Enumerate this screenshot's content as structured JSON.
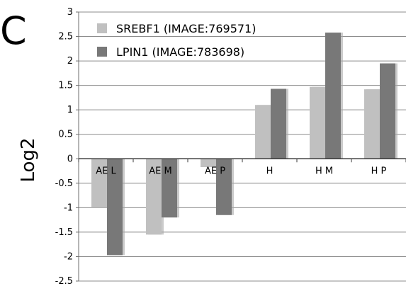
{
  "panel_label": "C",
  "chart_data": {
    "type": "bar",
    "title": "",
    "xlabel": "",
    "ylabel": "Log2",
    "ylim": [
      -2.5,
      3
    ],
    "yticks": [
      -2.5,
      -2,
      -1.5,
      -1,
      -0.5,
      0,
      0.5,
      1,
      1.5,
      2,
      2.5,
      3
    ],
    "ytick_labels": [
      "-2.5",
      "-2",
      "-1.5",
      "-1",
      "-0.5",
      "0",
      "0.5",
      "1",
      "1.5",
      "2",
      "2.5",
      "3"
    ],
    "grid": true,
    "legend_position": "top-left",
    "categories": [
      "AE L",
      "AE M",
      "AE P",
      "H",
      "H M",
      "H P"
    ],
    "series": [
      {
        "name": "SREBF1 (IMAGE:769571)",
        "color": "#c0c0c0",
        "values": [
          -1.0,
          -1.55,
          -0.17,
          1.1,
          1.47,
          1.42
        ]
      },
      {
        "name": "LPIN1 (IMAGE:783698)",
        "color": "#787878",
        "values": [
          -1.97,
          -1.2,
          -1.15,
          1.43,
          2.58,
          1.95
        ]
      }
    ]
  }
}
